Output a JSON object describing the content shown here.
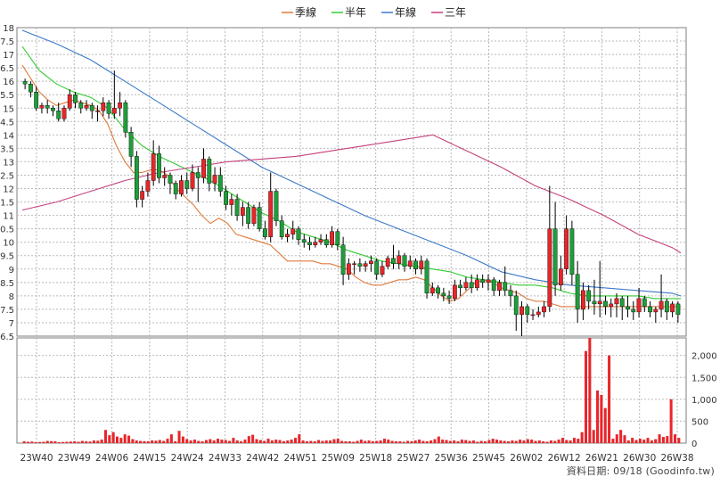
{
  "chart_data": [
    {
      "type": "candlestick",
      "title": "",
      "xlabel": "",
      "ylabel": "",
      "ylim": [
        6.5,
        18
      ],
      "y_ticks": [
        "18",
        "17.5",
        "17",
        "16.5",
        "16",
        "15.5",
        "15",
        "14.5",
        "14",
        "13.5",
        "13",
        "12.5",
        "12",
        "11.5",
        "11",
        "10.5",
        "10",
        "9.5",
        "9",
        "8.5",
        "8",
        "7.5",
        "7",
        "6.5"
      ],
      "grid": true,
      "legend": {
        "position": "top-center",
        "items": [
          "季線",
          "半年",
          "年線",
          "三年"
        ]
      },
      "colors": {
        "up": "#e8262a",
        "down": "#1e9e3a",
        "seasonal": "#e07a3c",
        "half_year": "#33cc33",
        "annual": "#3c79c8",
        "three_year": "#c6407e",
        "grid": "#b9b9b9"
      },
      "series": [
        {
          "name": "季線",
          "x": [
            0,
            2,
            4,
            6,
            8,
            10,
            12,
            14,
            16,
            18,
            20,
            22,
            24,
            26,
            28,
            30,
            32,
            34,
            36,
            38,
            40,
            42,
            44,
            46,
            48,
            50,
            52,
            54,
            56,
            58,
            60,
            62,
            64,
            66,
            68,
            70,
            72,
            74,
            76,
            78,
            80,
            82,
            84,
            86,
            88,
            90,
            92,
            94,
            96,
            98,
            100,
            102,
            104,
            106,
            108,
            110,
            112,
            114,
            116,
            118,
            120,
            122,
            124,
            126,
            128,
            130,
            132,
            134,
            136,
            138,
            140,
            142,
            144,
            146,
            148,
            150,
            152,
            154
          ],
          "values": [
            16.6,
            16.1,
            15.6,
            15.3,
            15.1,
            15.2,
            15.3,
            15.2,
            15.1,
            14.9,
            14.4,
            13.6,
            13.0,
            12.6,
            12.6,
            12.7,
            12.7,
            12.5,
            12.0,
            11.7,
            11.4,
            11.0,
            10.7,
            10.9,
            10.7,
            10.3,
            10.2,
            10.1,
            10.0,
            9.9,
            9.6,
            9.3,
            9.3,
            9.3,
            9.3,
            9.2,
            9.2,
            9.1,
            9.0,
            8.7,
            8.5,
            8.4,
            8.4,
            8.5,
            8.6,
            8.6,
            8.7,
            8.6,
            8.3,
            8.0,
            7.8,
            7.9,
            8.2,
            8.5,
            8.6,
            8.5,
            8.3,
            8.2,
            8.1,
            7.9,
            7.8,
            7.8,
            7.7,
            7.6,
            7.6,
            7.6,
            7.6,
            7.6,
            7.6,
            7.6,
            7.6,
            7.6,
            7.6,
            7.6,
            7.6,
            7.6,
            7.6,
            7.6
          ]
        },
        {
          "name": "半年",
          "x": [
            0,
            4,
            8,
            12,
            16,
            20,
            24,
            28,
            32,
            36,
            40,
            44,
            48,
            52,
            56,
            60,
            64,
            68,
            72,
            76,
            80,
            84,
            88,
            92,
            96,
            100,
            104,
            108,
            112,
            116,
            120,
            124,
            128,
            132,
            136,
            140,
            144,
            148,
            152,
            154
          ],
          "values": [
            17.3,
            16.4,
            15.9,
            15.6,
            15.4,
            15.0,
            14.2,
            13.6,
            13.2,
            12.9,
            12.6,
            12.3,
            11.9,
            11.5,
            11.1,
            10.8,
            10.4,
            10.2,
            10.0,
            9.7,
            9.5,
            9.3,
            9.2,
            9.1,
            9.0,
            8.9,
            8.7,
            8.6,
            8.5,
            8.4,
            8.4,
            8.3,
            8.1,
            8.0,
            8.0,
            8.0,
            8.0,
            7.9,
            7.9,
            7.9
          ]
        },
        {
          "name": "年線",
          "x": [
            0,
            8,
            16,
            24,
            32,
            40,
            48,
            56,
            64,
            72,
            80,
            88,
            96,
            104,
            112,
            120,
            128,
            136,
            144,
            152,
            154
          ],
          "values": [
            17.9,
            17.4,
            16.8,
            16.0,
            15.2,
            14.4,
            13.6,
            12.8,
            12.2,
            11.6,
            11.0,
            10.5,
            10.0,
            9.5,
            8.9,
            8.6,
            8.4,
            8.3,
            8.2,
            8.1,
            8.0
          ]
        },
        {
          "name": "三年",
          "x": [
            0,
            8,
            16,
            24,
            32,
            40,
            48,
            56,
            64,
            72,
            80,
            88,
            96,
            104,
            112,
            120,
            128,
            136,
            144,
            152,
            154
          ],
          "values": [
            11.2,
            11.5,
            11.9,
            12.3,
            12.6,
            12.8,
            13.0,
            13.1,
            13.2,
            13.4,
            13.6,
            13.8,
            14.0,
            13.4,
            12.8,
            12.1,
            11.6,
            11.0,
            10.3,
            9.8,
            9.6
          ]
        }
      ],
      "candles": [
        [
          16.0,
          15.9,
          16.1,
          15.7
        ],
        [
          15.9,
          15.6,
          16.0,
          15.4
        ],
        [
          15.6,
          15.0,
          15.8,
          14.9
        ],
        [
          15.0,
          15.1,
          15.2,
          14.8
        ],
        [
          15.1,
          15.0,
          15.3,
          14.8
        ],
        [
          15.0,
          14.9,
          15.1,
          14.7
        ],
        [
          14.9,
          14.6,
          15.2,
          14.5
        ],
        [
          14.6,
          15.0,
          15.1,
          14.5
        ],
        [
          15.0,
          15.5,
          15.7,
          14.9
        ],
        [
          15.5,
          15.2,
          15.6,
          15.0
        ],
        [
          15.2,
          15.0,
          15.3,
          14.8
        ],
        [
          15.0,
          15.1,
          15.3,
          14.9
        ],
        [
          15.1,
          14.9,
          15.2,
          14.6
        ],
        [
          14.9,
          14.9,
          15.1,
          14.5
        ],
        [
          14.9,
          15.2,
          15.4,
          14.7
        ],
        [
          15.2,
          14.8,
          15.3,
          14.6
        ],
        [
          14.8,
          15.0,
          16.4,
          14.6
        ],
        [
          15.0,
          15.2,
          15.6,
          14.7
        ],
        [
          15.2,
          14.1,
          15.3,
          13.9
        ],
        [
          14.1,
          13.2,
          14.3,
          12.8
        ],
        [
          13.2,
          11.6,
          13.4,
          11.3
        ],
        [
          11.6,
          11.9,
          12.1,
          11.3
        ],
        [
          11.9,
          12.3,
          12.6,
          11.7
        ],
        [
          12.3,
          13.3,
          13.8,
          12.1
        ],
        [
          13.3,
          12.4,
          13.6,
          12.2
        ],
        [
          12.4,
          12.5,
          12.8,
          12.1
        ],
        [
          12.5,
          12.2,
          12.6,
          11.8
        ],
        [
          12.2,
          11.8,
          12.3,
          11.6
        ],
        [
          11.8,
          12.3,
          12.5,
          11.7
        ],
        [
          12.3,
          12.0,
          12.6,
          11.8
        ],
        [
          12.0,
          12.6,
          12.9,
          11.9
        ],
        [
          12.6,
          12.4,
          12.8,
          11.5
        ],
        [
          12.4,
          13.1,
          13.5,
          12.2
        ],
        [
          13.1,
          12.2,
          13.2,
          11.9
        ],
        [
          12.2,
          12.5,
          12.8,
          11.9
        ],
        [
          12.5,
          11.9,
          12.8,
          11.7
        ],
        [
          11.9,
          11.4,
          12.1,
          11.2
        ],
        [
          11.4,
          11.6,
          11.8,
          11.0
        ],
        [
          11.6,
          11.0,
          11.8,
          10.8
        ],
        [
          11.0,
          11.3,
          11.5,
          10.6
        ],
        [
          11.3,
          10.7,
          11.5,
          10.5
        ],
        [
          10.7,
          11.3,
          11.4,
          10.6
        ],
        [
          11.3,
          10.5,
          11.5,
          10.4
        ],
        [
          10.5,
          10.2,
          10.8,
          10.1
        ],
        [
          10.2,
          11.9,
          12.6,
          10.0
        ],
        [
          11.9,
          10.8,
          12.0,
          10.6
        ],
        [
          10.8,
          10.2,
          11.0,
          10.1
        ],
        [
          10.2,
          10.3,
          10.5,
          10.0
        ],
        [
          10.3,
          10.5,
          10.8,
          10.1
        ],
        [
          10.5,
          10.1,
          10.6,
          9.9
        ],
        [
          10.1,
          10.0,
          10.3,
          9.8
        ],
        [
          10.0,
          9.9,
          10.2,
          9.7
        ],
        [
          9.9,
          10.0,
          10.2,
          9.8
        ],
        [
          10.0,
          10.1,
          10.3,
          9.9
        ],
        [
          10.1,
          9.9,
          10.3,
          9.8
        ],
        [
          9.9,
          10.4,
          10.6,
          9.8
        ],
        [
          10.4,
          9.9,
          10.5,
          9.7
        ],
        [
          9.9,
          8.8,
          10.2,
          8.4
        ],
        [
          8.8,
          9.2,
          9.4,
          8.6
        ],
        [
          9.2,
          9.2,
          9.3,
          8.8
        ],
        [
          9.2,
          9.1,
          9.4,
          8.9
        ],
        [
          9.1,
          9.2,
          9.3,
          8.9
        ],
        [
          9.2,
          9.3,
          9.5,
          8.9
        ],
        [
          9.3,
          8.8,
          9.4,
          8.6
        ],
        [
          8.8,
          9.1,
          9.3,
          8.7
        ],
        [
          9.1,
          9.4,
          9.5,
          9.0
        ],
        [
          9.4,
          9.2,
          9.9,
          9.0
        ],
        [
          9.2,
          9.5,
          9.7,
          9.0
        ],
        [
          9.5,
          9.1,
          9.6,
          8.9
        ],
        [
          9.1,
          9.3,
          9.5,
          9.0
        ],
        [
          9.3,
          9.0,
          9.4,
          8.8
        ],
        [
          9.0,
          9.3,
          9.5,
          8.8
        ],
        [
          9.3,
          8.1,
          9.4,
          7.9
        ],
        [
          8.1,
          8.3,
          8.5,
          8.0
        ],
        [
          8.3,
          8.1,
          8.4,
          7.9
        ],
        [
          8.1,
          8.0,
          8.3,
          7.8
        ],
        [
          8.0,
          7.9,
          8.2,
          7.7
        ],
        [
          7.9,
          8.4,
          8.6,
          7.8
        ],
        [
          8.4,
          8.3,
          8.6,
          8.0
        ],
        [
          8.3,
          8.5,
          8.7,
          8.2
        ],
        [
          8.5,
          8.3,
          8.8,
          8.1
        ],
        [
          8.3,
          8.6,
          8.8,
          8.2
        ],
        [
          8.6,
          8.5,
          8.8,
          8.3
        ],
        [
          8.5,
          8.6,
          8.8,
          8.2
        ],
        [
          8.6,
          8.2,
          8.7,
          8.0
        ],
        [
          8.2,
          8.5,
          8.6,
          8.0
        ],
        [
          8.5,
          8.2,
          9.1,
          8.0
        ],
        [
          8.2,
          8.0,
          8.4,
          7.6
        ],
        [
          8.0,
          7.3,
          8.2,
          6.7
        ],
        [
          7.3,
          7.6,
          7.8,
          6.5
        ],
        [
          7.6,
          7.3,
          7.7,
          7.0
        ],
        [
          7.3,
          7.3,
          7.5,
          7.1
        ],
        [
          7.3,
          7.4,
          7.6,
          7.2
        ],
        [
          7.4,
          7.6,
          7.8,
          7.2
        ],
        [
          7.6,
          10.5,
          12.1,
          7.4
        ],
        [
          10.5,
          8.4,
          11.5,
          8.0
        ],
        [
          8.4,
          9.0,
          9.5,
          8.2
        ],
        [
          9.0,
          10.5,
          11.0,
          8.8
        ],
        [
          10.5,
          8.8,
          10.8,
          8.4
        ],
        [
          8.8,
          7.5,
          9.3,
          7.0
        ],
        [
          7.5,
          8.2,
          8.5,
          7.1
        ],
        [
          8.2,
          7.8,
          8.4,
          7.5
        ],
        [
          7.8,
          7.7,
          8.6,
          7.3
        ],
        [
          7.7,
          7.8,
          9.3,
          7.2
        ],
        [
          7.8,
          7.6,
          8.0,
          7.3
        ],
        [
          7.6,
          7.7,
          7.9,
          7.2
        ],
        [
          7.7,
          7.9,
          8.1,
          7.2
        ],
        [
          7.9,
          7.6,
          8.0,
          7.1
        ],
        [
          7.6,
          7.5,
          8.0,
          7.2
        ],
        [
          7.5,
          7.4,
          7.8,
          7.1
        ],
        [
          7.4,
          7.9,
          8.3,
          7.2
        ],
        [
          7.9,
          7.6,
          8.0,
          7.4
        ],
        [
          7.6,
          7.4,
          7.8,
          7.2
        ],
        [
          7.4,
          7.5,
          7.6,
          7.0
        ],
        [
          7.5,
          7.8,
          8.8,
          7.2
        ],
        [
          7.8,
          7.4,
          7.9,
          7.1
        ],
        [
          7.4,
          7.7,
          7.8,
          7.2
        ],
        [
          7.7,
          7.3,
          7.8,
          7.0
        ]
      ],
      "x_tick_labels": [
        "23W40",
        "23W49",
        "24W06",
        "24W15",
        "24W24",
        "24W33",
        "24W42",
        "24W51",
        "25W09",
        "25W18",
        "25W27",
        "25W36",
        "25W45",
        "26W02",
        "26W12",
        "26W21",
        "26W30",
        "26W38"
      ]
    },
    {
      "type": "bar",
      "title": "",
      "ylim": [
        0,
        2400
      ],
      "y_ticks": [
        "2,000",
        "1,500",
        "1,000",
        "500",
        "0"
      ],
      "grid": true,
      "colors": {
        "bar": "#e8262a",
        "grid": "#b9b9b9"
      },
      "values": [
        40,
        30,
        35,
        20,
        25,
        30,
        50,
        45,
        40,
        20,
        25,
        30,
        35,
        40,
        30,
        50,
        40,
        35,
        60,
        55,
        80,
        300,
        180,
        250,
        150,
        120,
        200,
        170,
        90,
        60,
        50,
        45,
        40,
        60,
        55,
        70,
        50,
        100,
        200,
        40,
        280,
        150,
        90,
        60,
        80,
        50,
        40,
        70,
        90,
        60,
        100,
        80,
        70,
        50,
        120,
        60,
        40,
        80,
        160,
        190,
        90,
        70,
        50,
        100,
        60,
        80,
        70,
        45,
        60,
        80,
        120,
        200,
        60,
        40,
        50,
        40,
        70,
        50,
        60,
        60,
        90,
        100,
        50,
        40,
        40,
        30,
        50,
        80,
        50,
        60,
        40,
        50,
        60,
        100,
        80,
        50,
        40,
        40,
        30,
        50,
        40,
        60,
        80,
        50,
        40,
        60,
        90,
        150,
        80,
        70,
        50,
        60,
        40,
        80,
        70,
        50,
        60,
        30,
        50,
        40,
        70,
        100,
        80,
        60,
        50,
        40,
        60,
        50,
        80,
        60,
        90,
        80,
        50,
        60,
        40,
        30,
        60,
        50,
        80,
        120,
        70,
        60,
        120,
        100,
        250,
        2100,
        2400,
        300,
        1200,
        1100,
        800,
        2000,
        100,
        200,
        300,
        180,
        60,
        120,
        70,
        100,
        80,
        120,
        60,
        90,
        200,
        140,
        160,
        1000,
        200,
        120
      ],
      "x_tick_labels": [
        "23W40",
        "23W49",
        "24W06",
        "24W15",
        "24W24",
        "24W33",
        "24W42",
        "24W51",
        "25W09",
        "25W18",
        "25W27",
        "25W36",
        "25W45",
        "26W02",
        "26W12",
        "26W21",
        "26W30",
        "26W38"
      ]
    }
  ],
  "footer": {
    "data_date": "資料日期: 09/18",
    "source": "(Goodinfo.tw)"
  }
}
